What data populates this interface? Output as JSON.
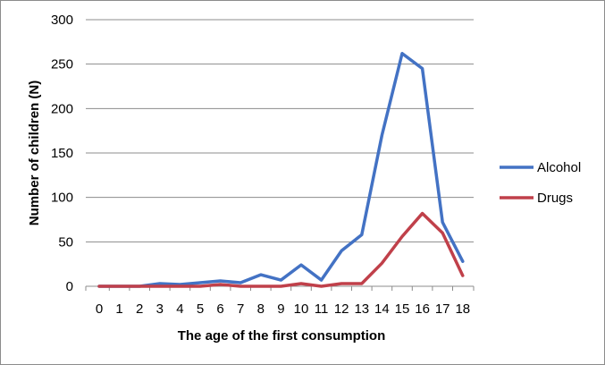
{
  "chart_data": {
    "type": "line",
    "xlabel": "The age of the first consumption",
    "ylabel": "Number of children (N)",
    "categories": [
      "0",
      "1",
      "2",
      "3",
      "4",
      "5",
      "6",
      "7",
      "8",
      "9",
      "10",
      "11",
      "12",
      "13",
      "14",
      "15",
      "16",
      "17",
      "18"
    ],
    "ylim": [
      0,
      300
    ],
    "yticks": [
      0,
      50,
      100,
      150,
      200,
      250,
      300
    ],
    "grid": true,
    "legend_position": "right",
    "series": [
      {
        "name": "Alcohol",
        "color": "#4372c4",
        "values": [
          0,
          0,
          0,
          3,
          2,
          4,
          6,
          4,
          13,
          7,
          24,
          7,
          40,
          58,
          170,
          262,
          245,
          72,
          28
        ]
      },
      {
        "name": "Drugs",
        "color": "#c0404a",
        "values": [
          0,
          0,
          0,
          0,
          0,
          0,
          2,
          0,
          0,
          0,
          3,
          0,
          3,
          3,
          26,
          56,
          82,
          60,
          12
        ]
      }
    ]
  }
}
